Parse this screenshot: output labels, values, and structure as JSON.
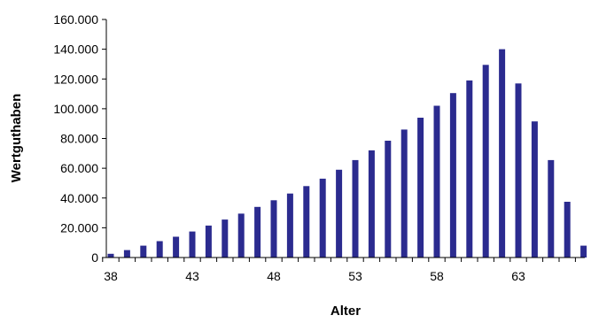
{
  "chart_data": {
    "type": "bar",
    "xlabel": "Alter",
    "ylabel": "Wertguthaben",
    "ylim": [
      0,
      160000
    ],
    "yticks": [
      "0",
      "20.000",
      "40.000",
      "60.000",
      "80.000",
      "100.000",
      "120.000",
      "140.000",
      "160.000"
    ],
    "xticks": [
      "38",
      "43",
      "48",
      "53",
      "58",
      "63"
    ],
    "x": [
      38,
      39,
      40,
      41,
      42,
      43,
      44,
      45,
      46,
      47,
      48,
      49,
      50,
      51,
      52,
      53,
      54,
      55,
      56,
      57,
      58,
      59,
      60,
      61,
      62,
      63,
      64,
      65,
      66,
      67
    ],
    "values": [
      2500,
      5000,
      8000,
      11000,
      14000,
      17500,
      21500,
      25500,
      29500,
      34000,
      38500,
      43000,
      48000,
      53000,
      59000,
      65500,
      72000,
      78500,
      86000,
      94000,
      102000,
      110500,
      119000,
      129500,
      140000,
      117000,
      91500,
      65500,
      37500,
      8000
    ],
    "bar_color": "#2b2b8f",
    "grid": false,
    "legend": "none"
  }
}
